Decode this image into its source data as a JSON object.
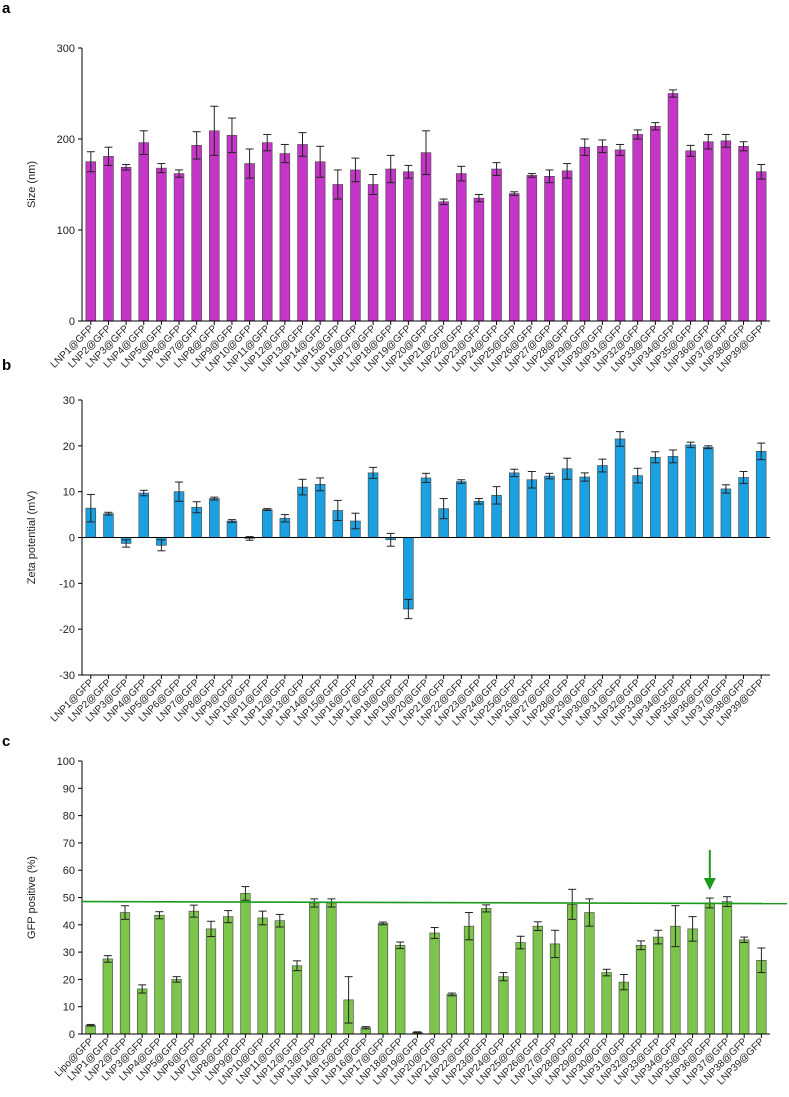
{
  "chart_data": [
    {
      "panel": "a",
      "type": "bar",
      "title": "",
      "xlabel": "",
      "ylabel": "Size (nm)",
      "ylim": [
        0,
        300
      ],
      "yticks": [
        0,
        100,
        200,
        300
      ],
      "color": "#c535c7",
      "categories": [
        "LNP1@GFP",
        "LNP2@GFP",
        "LNP3@GFP",
        "LNP4@GFP",
        "LNP5@GFP",
        "LNP6@GFP",
        "LNP7@GFP",
        "LNP8@GFP",
        "LNP9@GFP",
        "LNP10@GFP",
        "LNP11@GFP",
        "LNP12@GFP",
        "LNP13@GFP",
        "LNP14@GFP",
        "LNP15@GFP",
        "LNP16@GFP",
        "LNP17@GFP",
        "LNP18@GFP",
        "LNP19@GFP",
        "LNP20@GFP",
        "LNP21@GFP",
        "LNP22@GFP",
        "LNP23@GFP",
        "LNP24@GFP",
        "LNP25@GFP",
        "LNP26@GFP",
        "LNP27@GFP",
        "LNP28@GFP",
        "LNP29@GFP",
        "LNP30@GFP",
        "LNP31@GFP",
        "LNP32@GFP",
        "LNP33@GFP",
        "LNP34@GFP",
        "LNP35@GFP",
        "LNP36@GFP",
        "LNP37@GFP",
        "LNP38@GFP",
        "LNP39@GFP"
      ],
      "values": [
        175,
        181,
        169,
        196,
        168,
        162,
        193,
        209,
        204,
        173,
        196,
        184,
        194,
        175,
        150,
        166,
        150,
        167,
        164,
        185,
        131,
        162,
        135,
        167,
        140,
        160,
        159,
        165,
        191,
        192,
        188,
        205,
        214,
        250,
        187,
        197,
        198,
        192,
        164
      ],
      "errors": [
        11,
        10,
        3,
        13,
        5,
        4,
        15,
        27,
        19,
        16,
        9,
        10,
        13,
        17,
        16,
        13,
        11,
        15,
        7,
        24,
        3,
        8,
        4,
        7,
        2,
        2,
        7,
        8,
        9,
        7,
        6,
        5,
        4,
        4,
        6,
        8,
        7,
        5,
        8
      ]
    },
    {
      "panel": "b",
      "type": "bar",
      "title": "",
      "xlabel": "",
      "ylabel": "Zeta potential (mV)",
      "ylim": [
        -30,
        30
      ],
      "yticks": [
        -30,
        -20,
        -10,
        0,
        10,
        20,
        30
      ],
      "color": "#1ba1e2",
      "categories": [
        "LNP1@GFP",
        "LNP2@GFP",
        "LNP3@GFP",
        "LNP4@GFP",
        "LNP5@GFP",
        "LNP6@GFP",
        "LNP7@GFP",
        "LNP8@GFP",
        "LNP9@GFP",
        "LNP10@GFP",
        "LNP11@GFP",
        "LNP12@GFP",
        "LNP13@GFP",
        "LNP14@GFP",
        "LNP15@GFP",
        "LNP16@GFP",
        "LNP17@GFP",
        "LNP18@GFP",
        "LNP19@GFP",
        "LNP20@GFP",
        "LNP21@GFP",
        "LNP22@GFP",
        "LNP23@GFP",
        "LNP24@GFP",
        "LNP25@GFP",
        "LNP26@GFP",
        "LNP27@GFP",
        "LNP28@GFP",
        "LNP29@GFP",
        "LNP30@GFP",
        "LNP31@GFP",
        "LNP32@GFP",
        "LNP33@GFP",
        "LNP34@GFP",
        "LNP35@GFP",
        "LNP36@GFP",
        "LNP37@GFP",
        "LNP38@GFP",
        "LNP39@GFP"
      ],
      "values": [
        6.4,
        5.2,
        -1.3,
        9.7,
        -1.7,
        10.0,
        6.6,
        8.5,
        3.6,
        -0.2,
        6.1,
        4.2,
        11.0,
        11.6,
        5.9,
        3.6,
        14.1,
        -0.5,
        -15.6,
        13.0,
        6.3,
        12.2,
        7.9,
        9.2,
        14.1,
        12.6,
        13.4,
        15.0,
        13.2,
        15.7,
        21.5,
        13.5,
        17.5,
        17.7,
        20.2,
        19.7,
        10.6,
        13.1,
        18.8
      ],
      "errors": [
        3.0,
        0.3,
        0.8,
        0.6,
        1.2,
        2.1,
        1.2,
        0.3,
        0.3,
        0.4,
        0.2,
        0.8,
        1.7,
        1.4,
        2.2,
        1.7,
        1.2,
        1.4,
        2.1,
        1.0,
        2.2,
        0.4,
        0.6,
        1.9,
        0.8,
        1.8,
        0.6,
        2.3,
        0.9,
        1.4,
        1.6,
        1.6,
        1.2,
        1.4,
        0.6,
        0.3,
        0.9,
        1.3,
        1.8
      ]
    },
    {
      "panel": "c",
      "type": "bar",
      "title": "",
      "xlabel": "",
      "ylabel": "GFP positive (%)",
      "ylim": [
        0,
        100
      ],
      "yticks": [
        0,
        10,
        20,
        30,
        40,
        50,
        60,
        70,
        80,
        90,
        100
      ],
      "color": "#7cc54a",
      "reference_line": 48.5,
      "reference_color": "#1a9a1a",
      "arrow_category": "LNP36@GFP",
      "categories": [
        "Lipo@GFP",
        "LNP1@GFP",
        "LNP2@GFP",
        "LNP3@GFP",
        "LNP4@GFP",
        "LNP5@GFP",
        "LNP6@GFP",
        "LNP7@GFP",
        "LNP8@GFP",
        "LNP9@GFP",
        "LNP10@GFP",
        "LNP11@GFP",
        "LNP12@GFP",
        "LNP13@GFP",
        "LNP14@GFP",
        "LNP15@GFP",
        "LNP16@GFP",
        "LNP17@GFP",
        "LNP18@GFP",
        "LNP19@GFP",
        "LNP20@GFP",
        "LNP21@GFP",
        "LNP22@GFP",
        "LNP23@GFP",
        "LNP24@GFP",
        "LNP25@GFP",
        "LNP26@GFP",
        "LNP27@GFP",
        "LNP28@GFP",
        "LNP29@GFP",
        "LNP30@GFP",
        "LNP31@GFP",
        "LNP32@GFP",
        "LNP33@GFP",
        "LNP34@GFP",
        "LNP35@GFP",
        "LNP36@GFP",
        "LNP37@GFP",
        "LNP38@GFP",
        "LNP39@GFP"
      ],
      "values": [
        3.2,
        27.5,
        44.5,
        16.5,
        43.5,
        20.0,
        45.0,
        38.5,
        43.0,
        51.5,
        42.5,
        41.5,
        25.0,
        48.0,
        48.0,
        12.5,
        2.3,
        40.5,
        32.5,
        0.6,
        37.0,
        14.5,
        39.5,
        46.0,
        21.0,
        33.5,
        39.5,
        33.0,
        47.5,
        44.5,
        22.5,
        19.0,
        32.5,
        35.5,
        39.5,
        38.5,
        48.0,
        48.5,
        34.5,
        27.0
      ],
      "errors": [
        0.3,
        1.2,
        2.5,
        1.5,
        1.3,
        1.0,
        2.2,
        2.8,
        2.2,
        2.5,
        2.5,
        2.3,
        1.8,
        1.5,
        1.5,
        8.5,
        0.4,
        0.5,
        1.2,
        0.2,
        2.0,
        0.5,
        5.0,
        1.3,
        1.5,
        2.3,
        1.6,
        5.0,
        5.5,
        5.0,
        1.2,
        2.8,
        1.6,
        2.5,
        7.5,
        4.5,
        1.8,
        1.8,
        1.0,
        4.5
      ]
    }
  ]
}
